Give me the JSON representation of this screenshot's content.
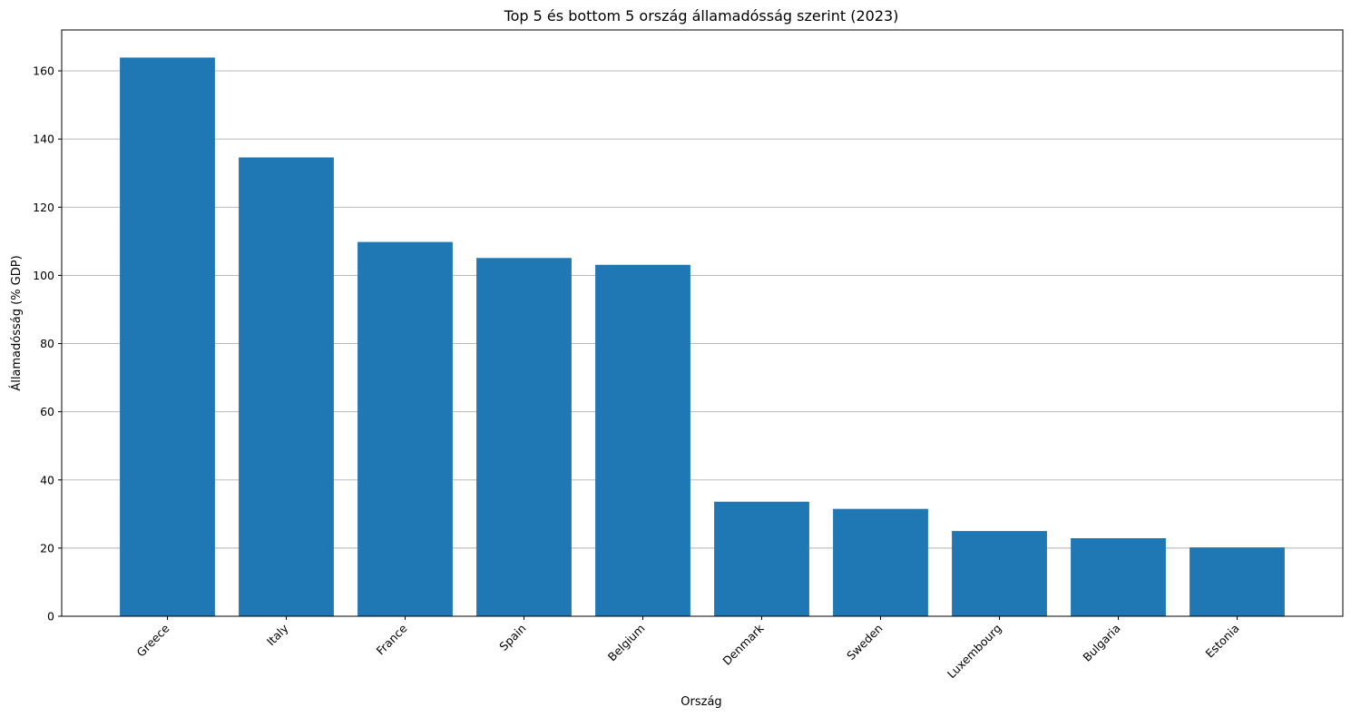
{
  "chart_data": {
    "type": "bar",
    "title": "Top 5 és bottom 5 ország államadósság szerint (2023)",
    "xlabel": "Ország",
    "ylabel": "Államadósság (% GDP)",
    "categories": [
      "Greece",
      "Italy",
      "France",
      "Spain",
      "Belgium",
      "Denmark",
      "Sweden",
      "Luxembourg",
      "Bulgaria",
      "Estonia"
    ],
    "values": [
      163.9,
      134.6,
      109.8,
      105.1,
      103.1,
      33.6,
      31.5,
      25.0,
      22.9,
      20.2
    ],
    "ylim": [
      0,
      172
    ],
    "yticks": [
      0,
      20,
      40,
      60,
      80,
      100,
      120,
      140,
      160
    ],
    "bar_color": "#1f77b4",
    "grid": "y-axis only",
    "xtick_rotation": -45
  }
}
